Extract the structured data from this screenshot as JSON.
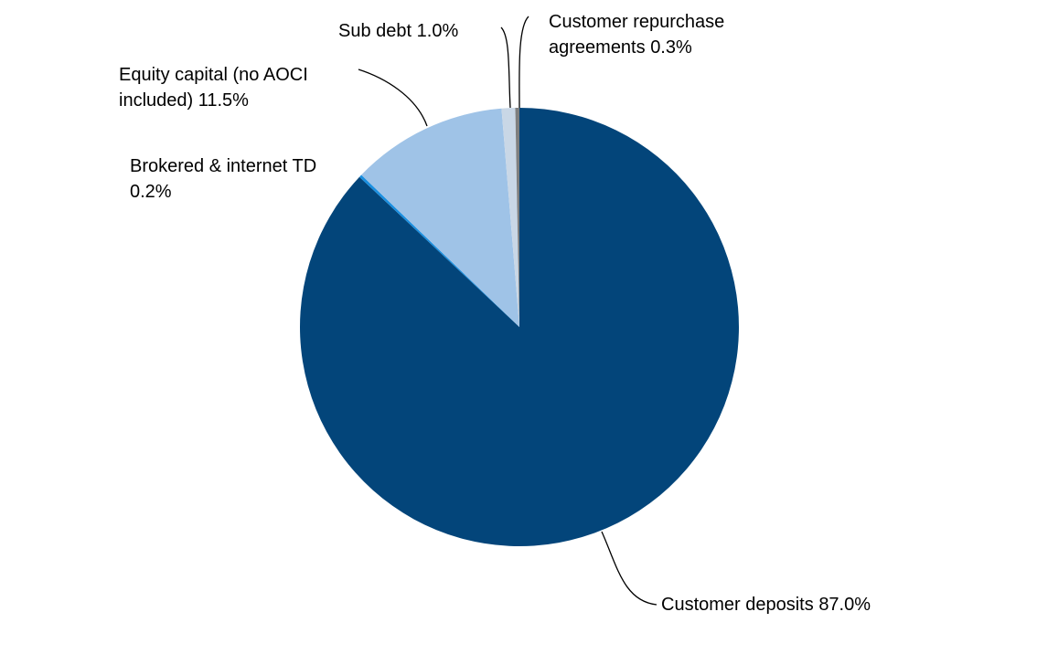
{
  "chart_data": {
    "type": "pie",
    "categories": [
      "Customer deposits",
      "Brokered & internet TD",
      "Equity capital (no AOCI included)",
      "Sub debt",
      "Customer repurchase agreements"
    ],
    "values": [
      87.0,
      0.2,
      11.5,
      1.0,
      0.3
    ],
    "value_labels": [
      "87.0%",
      "0.2%",
      "11.5%",
      "1.0%",
      "0.3%"
    ],
    "colors": [
      "#03457a",
      "#1a8fe0",
      "#9fc3e7",
      "#c9d7e6",
      "#7f7f7f"
    ]
  }
}
